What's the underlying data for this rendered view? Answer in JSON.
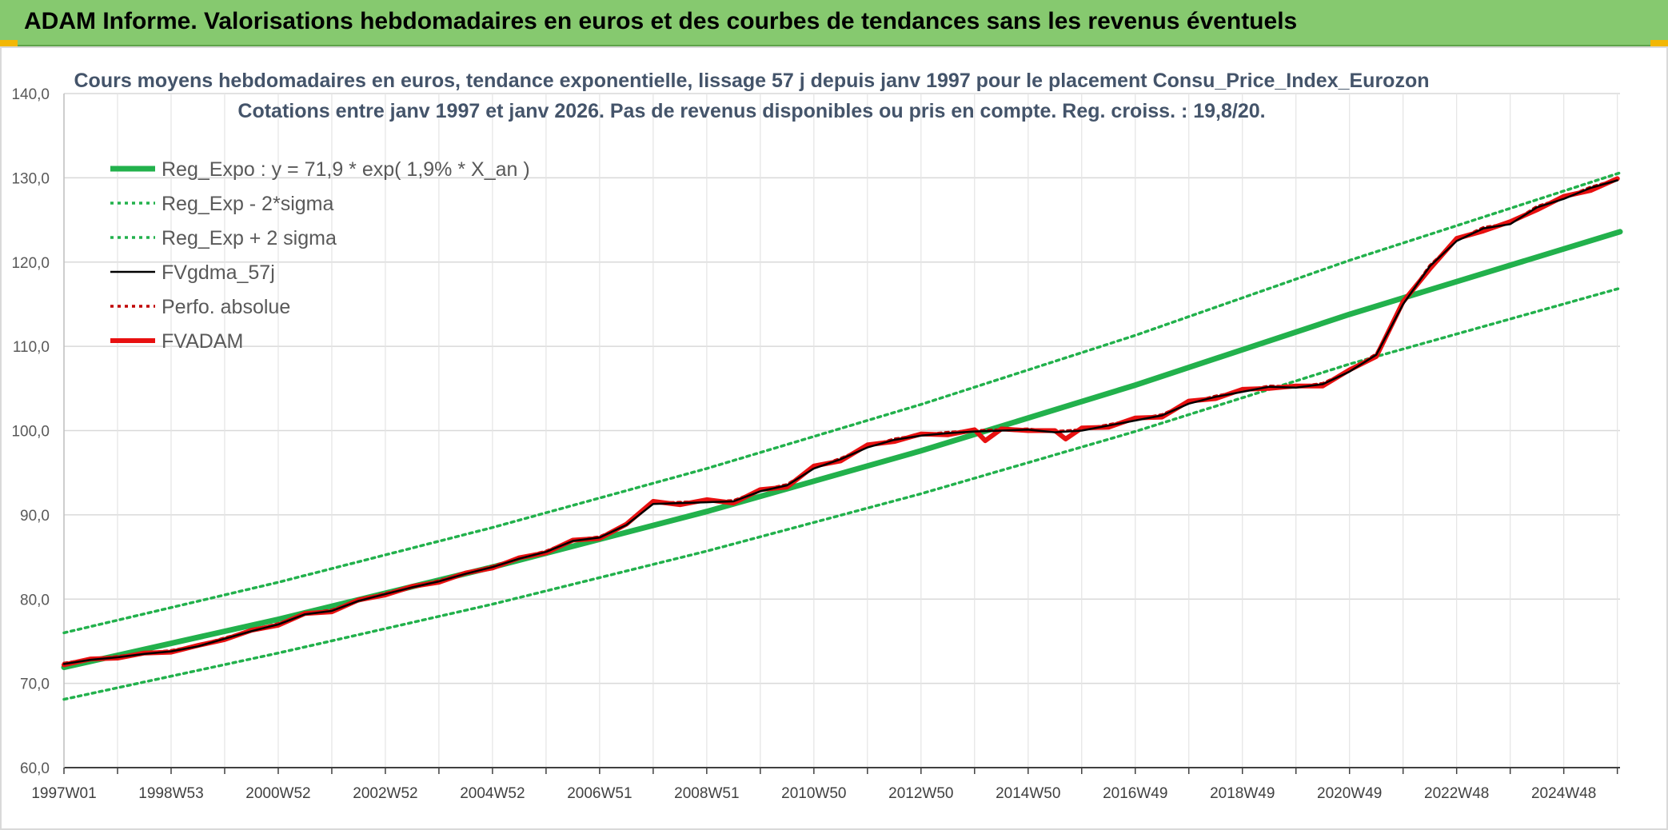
{
  "banner": {
    "title": "ADAM Informe. Valorisations hebdomadaires en euros et des courbes de tendances sans les revenus éventuels"
  },
  "chart_data": {
    "type": "line",
    "title": "Cours moyens hebdomadaires en euros, tendance exponentielle, lissage 57 j depuis janv 1997 pour le placement Consu_Price_Index_Eurozon",
    "subtitle": "Cotations entre janv 1997 et janv 2026. Pas de revenus disponibles ou pris en compte. Reg. croiss. : 19,8/20.",
    "xlabel": "",
    "ylabel": "",
    "ylim": [
      60,
      140
    ],
    "yticks": [
      "60,0",
      "70,0",
      "80,0",
      "90,0",
      "100,0",
      "110,0",
      "120,0",
      "130,0",
      "140,0"
    ],
    "xticks": [
      "1997W01",
      "1998W53",
      "2000W52",
      "2002W52",
      "2004W52",
      "2006W51",
      "2008W51",
      "2010W50",
      "2012W50",
      "2014W50",
      "2016W49",
      "2018W49",
      "2020W49",
      "2022W48",
      "2024W48"
    ],
    "xlim": [
      1997.0,
      2026.05
    ],
    "grid": true,
    "legend_position": "top-left",
    "series": [
      {
        "name": "Reg_Expo : y = 71,9 * exp( 1,9% *  X_an )",
        "color": "#22b14c",
        "style": "solid-thick",
        "x": [
          1997.0,
          2001.0,
          2005.0,
          2009.0,
          2013.0,
          2017.0,
          2021.0,
          2026.05
        ],
        "y": [
          71.9,
          77.6,
          83.8,
          90.4,
          97.6,
          105.4,
          113.8,
          123.6
        ]
      },
      {
        "name": "Reg_Exp - 2*sigma",
        "color": "#22b14c",
        "style": "dotted",
        "x": [
          1997.0,
          2001.0,
          2005.0,
          2009.0,
          2013.0,
          2017.0,
          2021.0,
          2026.05
        ],
        "y": [
          68.1,
          73.6,
          79.4,
          85.7,
          92.5,
          99.9,
          107.9,
          116.9
        ]
      },
      {
        "name": "Reg_Exp + 2 sigma",
        "color": "#22b14c",
        "style": "dotted",
        "x": [
          1997.0,
          2001.0,
          2005.0,
          2009.0,
          2013.0,
          2017.0,
          2021.0,
          2026.05
        ],
        "y": [
          76.0,
          82.0,
          88.5,
          95.5,
          103.1,
          111.3,
          120.2,
          130.6
        ]
      },
      {
        "name": "FVgdma_57j",
        "color": "#000000",
        "style": "solid",
        "x": [
          1997.0,
          1997.5,
          1998.0,
          1998.5,
          1999.0,
          1999.5,
          2000.0,
          2000.5,
          2001.0,
          2001.5,
          2002.0,
          2002.5,
          2003.0,
          2003.5,
          2004.0,
          2004.5,
          2005.0,
          2005.5,
          2006.0,
          2006.5,
          2007.0,
          2007.5,
          2008.0,
          2008.5,
          2009.0,
          2009.5,
          2010.0,
          2010.5,
          2011.0,
          2011.5,
          2012.0,
          2012.5,
          2013.0,
          2013.5,
          2014.0,
          2014.5,
          2015.0,
          2015.5,
          2016.0,
          2016.5,
          2017.0,
          2017.5,
          2018.0,
          2018.5,
          2019.0,
          2019.5,
          2020.0,
          2020.5,
          2021.0,
          2021.5,
          2022.0,
          2022.5,
          2023.0,
          2023.5,
          2024.0,
          2024.5,
          2025.0,
          2025.5,
          2026.0
        ],
        "y": [
          72.3,
          72.8,
          73.1,
          73.5,
          73.8,
          74.4,
          75.3,
          76.2,
          77.0,
          78.2,
          78.6,
          79.8,
          80.6,
          81.4,
          82.1,
          83.0,
          83.8,
          84.8,
          85.6,
          86.9,
          87.3,
          88.8,
          91.3,
          91.4,
          91.5,
          91.6,
          92.8,
          93.5,
          95.5,
          96.6,
          98.0,
          98.9,
          99.4,
          99.7,
          99.9,
          100.0,
          100.1,
          99.8,
          100.0,
          100.6,
          101.2,
          101.8,
          103.2,
          104.0,
          104.6,
          105.2,
          105.1,
          105.5,
          107.0,
          109.0,
          115.0,
          119.5,
          122.5,
          124.0,
          124.5,
          126.5,
          127.5,
          128.8,
          129.7
        ]
      },
      {
        "name": "Perfo. absolue",
        "color": "#c00000",
        "style": "dotted",
        "x": [
          1997.0,
          1997.5,
          1998.0,
          1998.5,
          1999.0,
          1999.5,
          2000.0,
          2000.5,
          2001.0,
          2001.5,
          2002.0,
          2002.5,
          2003.0,
          2003.5,
          2004.0,
          2004.5,
          2005.0,
          2005.5,
          2006.0,
          2006.5,
          2007.0,
          2007.5,
          2008.0,
          2008.5,
          2009.0,
          2009.5,
          2010.0,
          2010.5,
          2011.0,
          2011.5,
          2012.0,
          2012.5,
          2013.0,
          2013.5,
          2014.0,
          2014.5,
          2015.0,
          2015.5,
          2016.0,
          2016.5,
          2017.0,
          2017.5,
          2018.0,
          2018.5,
          2019.0,
          2019.5,
          2020.0,
          2020.5,
          2021.0,
          2021.5,
          2022.0,
          2022.5,
          2023.0,
          2023.5,
          2024.0,
          2024.5,
          2025.0,
          2025.5,
          2026.0
        ],
        "y": [
          72.4,
          72.9,
          73.2,
          73.6,
          73.9,
          74.5,
          75.4,
          76.3,
          77.1,
          78.3,
          78.7,
          79.9,
          80.7,
          81.5,
          82.2,
          83.1,
          83.9,
          84.9,
          85.7,
          87.0,
          87.4,
          88.9,
          91.4,
          91.5,
          91.6,
          91.7,
          92.9,
          93.6,
          95.6,
          96.7,
          98.1,
          99.0,
          99.5,
          99.8,
          100.0,
          100.1,
          100.2,
          99.9,
          100.1,
          100.7,
          101.3,
          101.9,
          103.3,
          104.1,
          104.7,
          105.3,
          105.2,
          105.6,
          107.1,
          109.1,
          115.1,
          119.6,
          122.6,
          124.1,
          124.6,
          126.6,
          127.6,
          128.9,
          129.8
        ]
      },
      {
        "name": "FVADAM",
        "color": "#e81010",
        "style": "solid-thick",
        "x": [
          1997.0,
          1997.5,
          1998.0,
          1998.5,
          1999.0,
          1999.5,
          2000.0,
          2000.5,
          2001.0,
          2001.5,
          2002.0,
          2002.5,
          2003.0,
          2003.5,
          2004.0,
          2004.5,
          2005.0,
          2005.5,
          2006.0,
          2006.5,
          2007.0,
          2007.5,
          2008.0,
          2008.5,
          2009.0,
          2009.5,
          2010.0,
          2010.5,
          2011.0,
          2011.5,
          2012.0,
          2012.5,
          2013.0,
          2013.5,
          2014.0,
          2014.2,
          2014.5,
          2015.0,
          2015.5,
          2015.7,
          2016.0,
          2016.5,
          2017.0,
          2017.5,
          2018.0,
          2018.5,
          2019.0,
          2019.5,
          2020.0,
          2020.5,
          2021.0,
          2021.5,
          2022.0,
          2022.5,
          2023.0,
          2023.5,
          2024.0,
          2024.5,
          2025.0,
          2025.5,
          2026.0
        ],
        "y": [
          72.2,
          72.9,
          73.0,
          73.6,
          73.7,
          74.5,
          75.2,
          76.3,
          76.9,
          78.3,
          78.5,
          79.9,
          80.5,
          81.5,
          82.0,
          83.1,
          83.7,
          84.9,
          85.5,
          87.0,
          87.2,
          88.9,
          91.6,
          91.2,
          91.8,
          91.4,
          93.0,
          93.3,
          95.8,
          96.4,
          98.3,
          98.7,
          99.6,
          99.5,
          100.1,
          98.8,
          100.2,
          100.0,
          100.0,
          99.0,
          100.3,
          100.4,
          101.5,
          101.6,
          103.5,
          103.8,
          104.9,
          105.0,
          105.3,
          105.3,
          107.2,
          108.8,
          115.3,
          119.2,
          122.8,
          123.7,
          124.8,
          126.2,
          127.8,
          128.5,
          129.9
        ]
      }
    ]
  }
}
